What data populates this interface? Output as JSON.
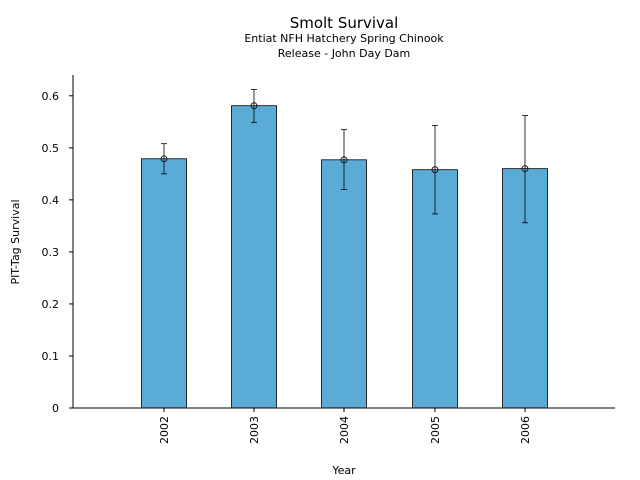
{
  "chart_data": {
    "type": "bar",
    "title": "Smolt Survival",
    "subtitle_lines": [
      "Entiat NFH Hatchery Spring Chinook",
      "Release - John Day Dam"
    ],
    "xlabel": "Year",
    "ylabel": "PIT-Tag Survival",
    "categories": [
      "2002",
      "2003",
      "2004",
      "2005",
      "2006"
    ],
    "values": [
      0.479,
      0.581,
      0.477,
      0.458,
      0.46
    ],
    "error_low": [
      0.45,
      0.549,
      0.42,
      0.373,
      0.356
    ],
    "error_high": [
      0.508,
      0.612,
      0.535,
      0.543,
      0.562
    ],
    "ylim": [
      0,
      0.64
    ],
    "yticks": [
      0,
      0.1,
      0.2,
      0.3,
      0.4,
      0.5,
      0.6
    ],
    "ytick_labels": [
      "0",
      "0.1",
      "0.2",
      "0.3",
      "0.4",
      "0.5",
      "0.6"
    ],
    "grid": false,
    "bar_color": "#5aacd6"
  }
}
